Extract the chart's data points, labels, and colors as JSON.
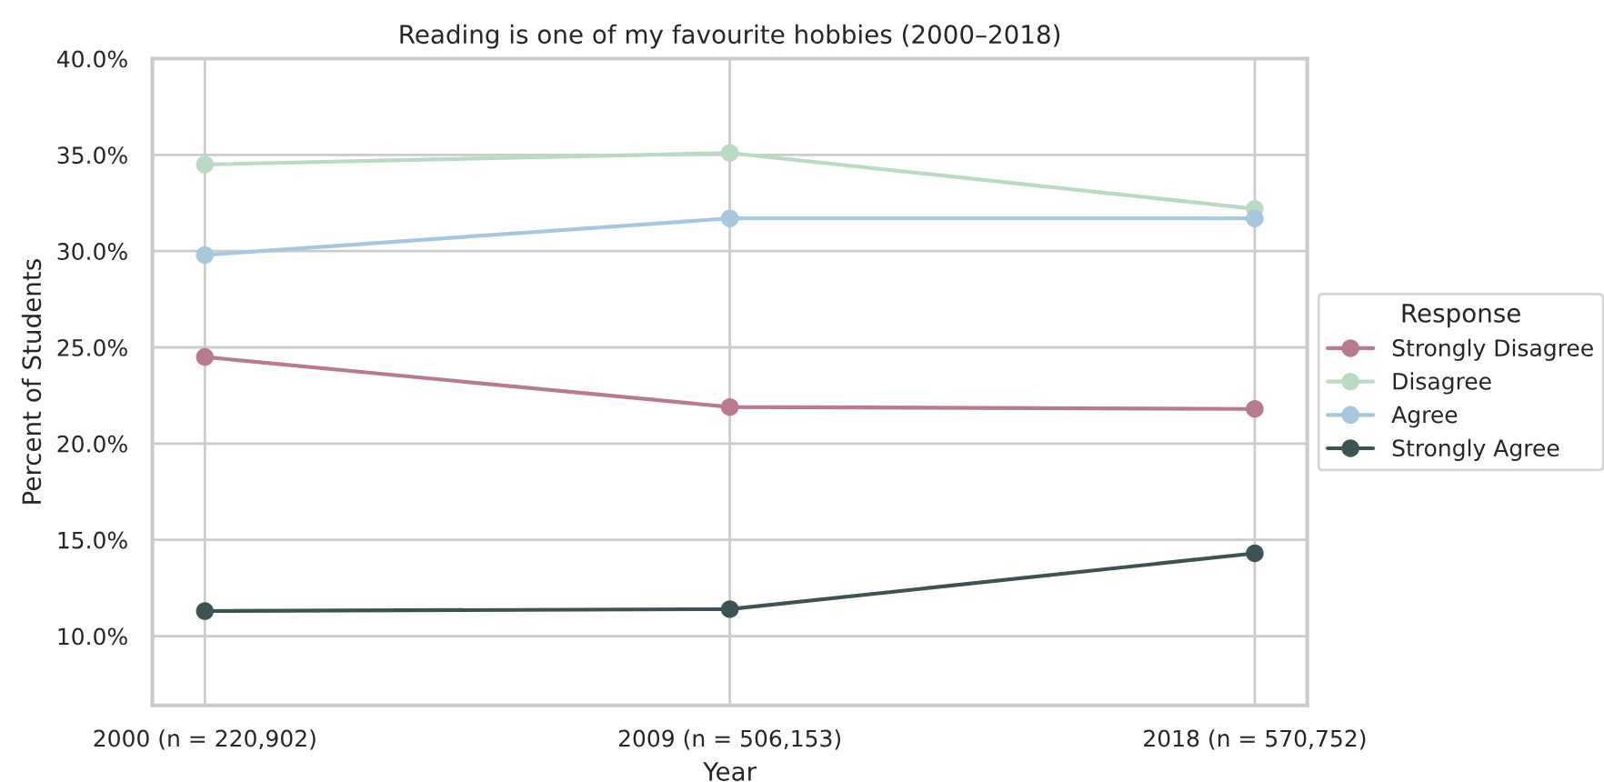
{
  "chart_data": {
    "type": "line",
    "title": "Reading is one of my favourite hobbies (2000–2018)",
    "xlabel": "Year",
    "ylabel": "Percent of Students",
    "legend_title": "Response",
    "categories": [
      "2000 (n = 220,902)",
      "2009 (n = 506,153)",
      "2018 (n = 570,752)"
    ],
    "series": [
      {
        "name": "Strongly Disagree",
        "color": "#b77a8e",
        "values": [
          24.5,
          21.9,
          21.8
        ]
      },
      {
        "name": "Disagree",
        "color": "#bbd9c3",
        "values": [
          34.5,
          35.1,
          32.2
        ]
      },
      {
        "name": "Agree",
        "color": "#a7c7dc",
        "values": [
          29.8,
          31.7,
          31.7
        ]
      },
      {
        "name": "Strongly Agree",
        "color": "#3f5253",
        "values": [
          11.3,
          11.4,
          14.3
        ]
      }
    ],
    "ylim": [
      6.4,
      40
    ],
    "yticks": [
      {
        "value": 10,
        "label": "10.0%"
      },
      {
        "value": 15,
        "label": "15.0%"
      },
      {
        "value": 20,
        "label": "20.0%"
      },
      {
        "value": 25,
        "label": "25.0%"
      },
      {
        "value": 30,
        "label": "30.0%"
      },
      {
        "value": 35,
        "label": "35.0%"
      },
      {
        "value": 40,
        "label": "40.0%"
      }
    ],
    "grid": true,
    "legend": "right",
    "marker": "circle",
    "line_style": "solid"
  }
}
